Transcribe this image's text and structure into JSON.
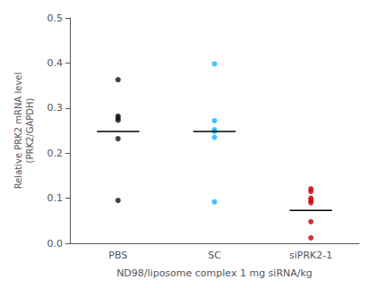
{
  "chart_data": {
    "type": "scatter",
    "xlabel": "ND98/liposome complex 1 mg siRNA/kg",
    "ylabel": "Relative PRK2 mRNA level\n(PRK2/GAPDH)",
    "categories": [
      "PBS",
      "SC",
      "siPRK2-1"
    ],
    "series": [
      {
        "type": "scatter",
        "colors": [
          "#111111",
          "#1ab2ff",
          "#cc0000"
        ],
        "values": [
          [
            0.363,
            0.282,
            0.278,
            0.273,
            0.232,
            0.095
          ],
          [
            0.398,
            0.272,
            0.252,
            0.248,
            0.235,
            0.092
          ],
          [
            0.121,
            0.115,
            0.1,
            0.095,
            0.09,
            0.048,
            0.012
          ]
        ]
      },
      {
        "type": "line",
        "color": "#000000",
        "values": [
          0.248,
          0.248,
          0.073
        ]
      }
    ],
    "ylim": [
      0,
      0.5
    ],
    "yticks": [
      {
        "value": 0,
        "label": "0.0"
      },
      0.1,
      0.2,
      0.3,
      0.4,
      0.5
    ],
    "grid": false
  }
}
